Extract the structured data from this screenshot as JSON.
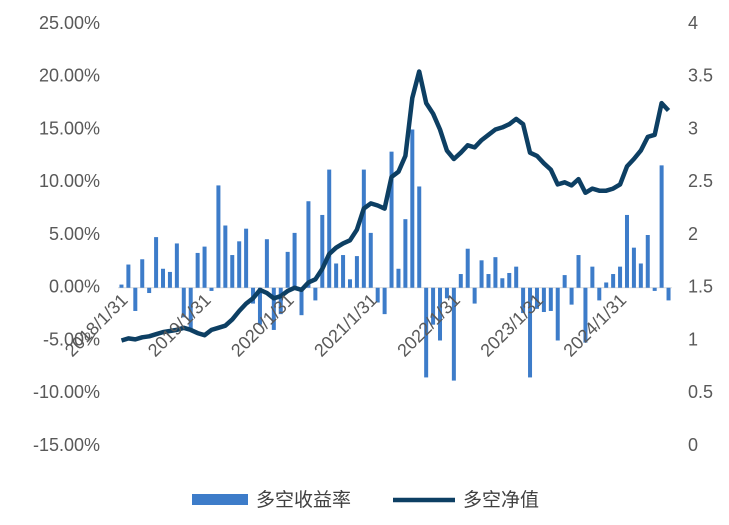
{
  "chart_data": {
    "type": "bar-line",
    "categories": [
      "2018/1/31",
      null,
      null,
      null,
      null,
      null,
      null,
      null,
      null,
      null,
      null,
      null,
      "2019/1/31",
      null,
      null,
      null,
      null,
      null,
      null,
      null,
      null,
      null,
      null,
      null,
      "2020/1/31",
      null,
      null,
      null,
      null,
      null,
      null,
      null,
      null,
      null,
      null,
      null,
      "2021/1/31",
      null,
      null,
      null,
      null,
      null,
      null,
      null,
      null,
      null,
      null,
      null,
      "2022/1/31",
      null,
      null,
      null,
      null,
      null,
      null,
      null,
      null,
      null,
      null,
      null,
      "2023/1/31",
      null,
      null,
      null,
      null,
      null,
      null,
      null,
      null,
      null,
      null,
      null,
      "2024/1/31",
      null,
      null,
      null,
      null,
      null,
      null,
      null
    ],
    "series": [
      {
        "name": "多空收益率",
        "type": "bar",
        "axis": "y",
        "color": "#3d7cc9",
        "values": [
          0.3,
          2.2,
          -2.2,
          2.7,
          -0.5,
          4.8,
          1.8,
          1.5,
          4.2,
          -2.8,
          -4,
          3.3,
          3.9,
          -0.3,
          9.7,
          5.9,
          3.1,
          4.4,
          5.6,
          -1.5,
          -3.5,
          4.6,
          -4,
          -2.5,
          3.4,
          5.2,
          -2.6,
          8.2,
          -1.2,
          6.9,
          11.2,
          2.3,
          3.1,
          0.8,
          3,
          11.2,
          5.2,
          -1.4,
          -2.5,
          12.9,
          1.8,
          6.5,
          15,
          9.6,
          -8.5,
          -3.5,
          -5,
          -1,
          -8.8,
          1.3,
          3.7,
          -1.5,
          2.6,
          1.3,
          2.9,
          0.9,
          1.4,
          2,
          -2.4,
          -8.5,
          -2,
          -2.3,
          -2.2,
          -5,
          1.2,
          -1.6,
          3.1,
          -5.2,
          2,
          -1.2,
          0.5,
          1.3,
          2,
          6.9,
          3.8,
          2.3,
          5,
          -0.3,
          11.6,
          -1.2
        ]
      },
      {
        "name": "多空净值",
        "type": "line",
        "axis": "y2",
        "color": "#0d3f63",
        "values": [
          1,
          1.02,
          1.01,
          1.03,
          1.04,
          1.06,
          1.08,
          1.09,
          1.1,
          1.12,
          1.1,
          1.07,
          1.05,
          1.1,
          1.12,
          1.14,
          1.2,
          1.28,
          1.35,
          1.4,
          1.48,
          1.45,
          1.4,
          1.42,
          1.47,
          1.5,
          1.48,
          1.55,
          1.58,
          1.68,
          1.82,
          1.88,
          1.92,
          1.95,
          2.05,
          2.25,
          2.3,
          2.28,
          2.25,
          2.55,
          2.6,
          2.75,
          3.3,
          3.55,
          3.25,
          3.15,
          3,
          2.8,
          2.72,
          2.78,
          2.85,
          2.83,
          2.9,
          2.95,
          3,
          3.02,
          3.05,
          3.1,
          3.05,
          2.78,
          2.75,
          2.68,
          2.62,
          2.48,
          2.5,
          2.47,
          2.53,
          2.4,
          2.44,
          2.42,
          2.42,
          2.44,
          2.48,
          2.65,
          2.72,
          2.8,
          2.93,
          2.95,
          3.25,
          3.18
        ]
      }
    ],
    "ylim": [
      -15,
      25
    ],
    "yticks": [
      {
        "value": -15,
        "label": "-15.00%"
      },
      {
        "value": -10,
        "label": "-10.00%"
      },
      {
        "value": -5,
        "label": "-5.00%"
      },
      {
        "value": 0,
        "label": "0.00%"
      },
      {
        "value": 5,
        "label": "5.00%"
      },
      {
        "value": 10,
        "label": "10.00%"
      },
      {
        "value": 15,
        "label": "15.00%"
      },
      {
        "value": 20,
        "label": "20.00%"
      },
      {
        "value": 25,
        "label": "25.00%"
      }
    ],
    "y2lim": [
      0,
      4
    ],
    "y2ticks": [
      0,
      0.5,
      1,
      1.5,
      2,
      2.5,
      3,
      3.5,
      4
    ],
    "grid": false
  }
}
